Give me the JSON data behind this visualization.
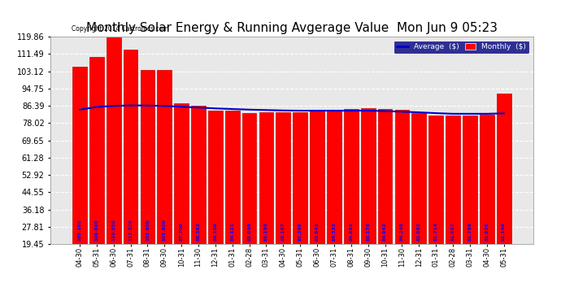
{
  "title": "Monthly Solar Energy & Running Avgerage Value  Mon Jun 9 05:23",
  "copyright": "Copyright 2014 Cartronics.com",
  "categories": [
    "04-30",
    "05-31",
    "06-30",
    "07-31",
    "08-31",
    "09-30",
    "10-31",
    "11-30",
    "12-31",
    "01-31",
    "02-28",
    "03-31",
    "04-30",
    "05-31",
    "06-30",
    "07-31",
    "08-31",
    "09-30",
    "10-31",
    "11-30",
    "12-31",
    "01-31",
    "02-28",
    "03-31",
    "04-30",
    "05-31"
  ],
  "monthly_values": [
    105.1,
    109.88,
    119.55,
    113.52,
    103.6,
    103.6,
    87.7,
    86.382,
    84.1,
    84.121,
    83.03,
    83.15,
    83.167,
    83.399,
    83.942,
    84.332,
    84.893,
    85.176,
    84.942,
    84.248,
    82.882,
    81.714,
    81.667,
    81.788,
    81.926,
    92.14
  ],
  "average_values": [
    84.5,
    85.8,
    86.3,
    86.55,
    86.5,
    86.3,
    85.9,
    85.5,
    85.1,
    84.8,
    84.5,
    84.3,
    84.1,
    84.0,
    84.0,
    84.0,
    84.0,
    84.0,
    83.8,
    83.5,
    83.2,
    82.8,
    82.5,
    82.5,
    82.5,
    82.7
  ],
  "bar_color": "#ff0000",
  "bar_edge_color": "#cc0000",
  "line_color": "#0000cc",
  "bg_color": "#ffffff",
  "plot_bg_color": "#e8e8e8",
  "grid_color": "#ffffff",
  "text_color_bar": "#0000ff",
  "yticks": [
    19.45,
    27.81,
    36.18,
    44.55,
    52.92,
    61.28,
    69.65,
    78.02,
    86.39,
    94.75,
    103.12,
    111.49,
    119.86
  ],
  "ylim_min": 19.45,
  "ylim_max": 119.86,
  "title_fontsize": 11,
  "legend_avg_label": "Average  ($)",
  "legend_monthly_label": "Monthly  ($)"
}
